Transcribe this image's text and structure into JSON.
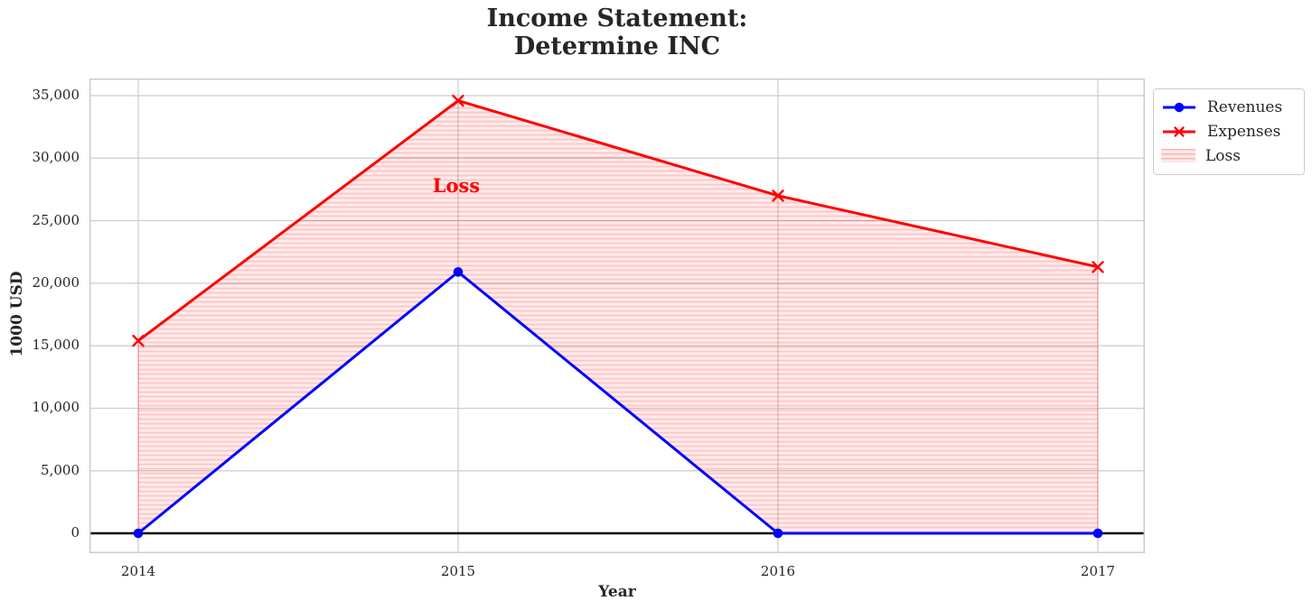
{
  "chart_data": {
    "type": "line",
    "title": "Income Statement:\nDetermine INC",
    "title_lines": [
      "Income Statement:",
      "Determine INC"
    ],
    "xlabel": "Year",
    "ylabel": "1000 USD",
    "x": [
      2014,
      2015,
      2016,
      2017
    ],
    "x_tick_labels": [
      "2014",
      "2015",
      "2016",
      "2017"
    ],
    "y_ticks": [
      0,
      5000,
      10000,
      15000,
      20000,
      25000,
      30000,
      35000
    ],
    "y_tick_labels": [
      "0",
      "5,000",
      "10,000",
      "15,000",
      "20,000",
      "25,000",
      "30,000",
      "35,000"
    ],
    "ylim": [
      -1600,
      36400
    ],
    "grid": true,
    "series": [
      {
        "name": "Revenues",
        "color": "#0000ff",
        "marker": "circle",
        "values": [
          0,
          20900,
          0,
          0
        ]
      },
      {
        "name": "Expenses",
        "color": "#ff0000",
        "marker": "x",
        "values": [
          15400,
          34600,
          27000,
          21300
        ]
      }
    ],
    "fill": {
      "legend_label": "Loss",
      "between": [
        "Revenues",
        "Expenses"
      ],
      "color": "#ff0000",
      "opacity": 0.09,
      "hatch": "horizontal-lines"
    },
    "annotation": {
      "text": "Loss",
      "x": 2015,
      "y": 27600,
      "color": "#ff0000"
    },
    "zero_line": {
      "y": 0,
      "color": "#000000"
    },
    "legend": {
      "position": "upper-right-outside",
      "entries": [
        "Revenues",
        "Expenses",
        "Loss"
      ]
    }
  }
}
